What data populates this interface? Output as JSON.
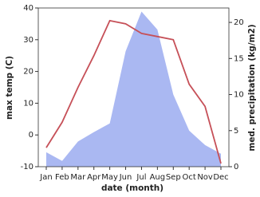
{
  "chart_data": {
    "type": "line-area",
    "x_label": "date (month)",
    "y_label": "max temp (C)",
    "y2_label": "med. precipitation (kg/m2)",
    "categories": [
      "Jan",
      "Feb",
      "Mar",
      "Apr",
      "May",
      "Jun",
      "Jul",
      "Aug",
      "Sep",
      "Oct",
      "Nov",
      "Dec"
    ],
    "series": [
      {
        "name": "max temp",
        "kind": "line",
        "color": "#c65058",
        "values": [
          -4,
          4,
          15,
          25,
          36,
          35,
          32,
          31,
          30,
          16,
          9,
          -9
        ]
      },
      {
        "name": "precipitation",
        "kind": "area",
        "axis": "y2",
        "color": "#aab8f2",
        "values": [
          2,
          0.8,
          3.5,
          4.8,
          6,
          16,
          21.5,
          19,
          10,
          5,
          3,
          1.8
        ]
      }
    ],
    "ylim": [
      -10,
      40
    ],
    "yticks": [
      -10,
      0,
      10,
      20,
      30,
      40
    ],
    "y2lim": [
      0,
      22
    ],
    "y2ticks": [
      0,
      5,
      10,
      15,
      20
    ]
  }
}
